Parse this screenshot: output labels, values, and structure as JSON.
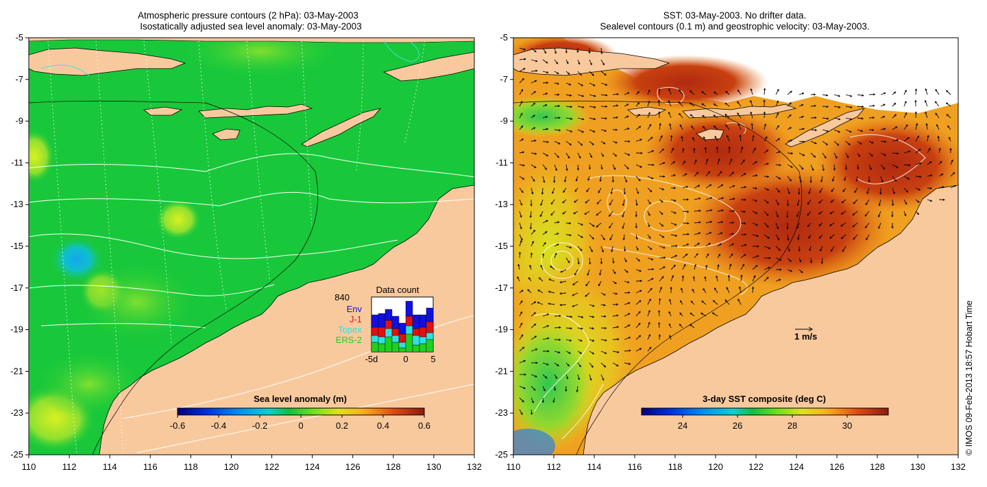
{
  "left_panel": {
    "title_line1": "Atmospheric pressure contours (2 hPa): 03-May-2003",
    "title_line2": "Isostatically adjusted sea level anomaly: 03-May-2003",
    "x_ticks": [
      "110",
      "112",
      "114",
      "116",
      "118",
      "120",
      "122",
      "124",
      "126",
      "128",
      "130",
      "132"
    ],
    "y_ticks": [
      "-5",
      "-7",
      "-9",
      "-11",
      "-13",
      "-15",
      "-17",
      "-19",
      "-21",
      "-23",
      "-25"
    ],
    "lon_range": [
      110,
      132
    ],
    "lat_range": [
      -25,
      -5
    ],
    "colorbar": {
      "title": "Sea level anomaly (m)",
      "range": [
        -0.6,
        0.6
      ],
      "ticks": [
        "-0.6",
        "-0.4",
        "-0.2",
        "0",
        "0.2",
        "0.4",
        "0.6"
      ]
    },
    "data_count": {
      "title": "Data count",
      "total": "840",
      "legend": [
        {
          "label": "Env",
          "color": "#1010e0"
        },
        {
          "label": "J-1",
          "color": "#e01010"
        },
        {
          "label": "Topex",
          "color": "#30e0e0"
        },
        {
          "label": "ERS-2",
          "color": "#20d020"
        }
      ],
      "x_ticks": [
        "-5d",
        "0",
        "5"
      ]
    }
  },
  "right_panel": {
    "title_line1": "SST: 03-May-2003. No drifter data.",
    "title_line2": "Sealevel contours (0.1 m) and geostrophic velocity: 03-May-2003.",
    "x_ticks": [
      "110",
      "112",
      "114",
      "116",
      "118",
      "120",
      "122",
      "124",
      "126",
      "128",
      "130",
      "132"
    ],
    "y_ticks": [
      "-5",
      "-7",
      "-9",
      "-11",
      "-13",
      "-15",
      "-17",
      "-19",
      "-21",
      "-23",
      "-25"
    ],
    "lon_range": [
      110,
      132
    ],
    "lat_range": [
      -25,
      -5
    ],
    "velocity_scale_label": "1 m/s",
    "colorbar": {
      "title": "3-day SST composite (deg C)",
      "range": [
        22.5,
        31.5
      ],
      "ticks": [
        "24",
        "26",
        "28",
        "30"
      ]
    }
  },
  "credit": "© IMOS 09-Feb-2013 18:57 Hobart Time",
  "colors": {
    "land": "#f9c99e",
    "sla_background": "#18c83a",
    "sst_background": "#f0a020"
  }
}
